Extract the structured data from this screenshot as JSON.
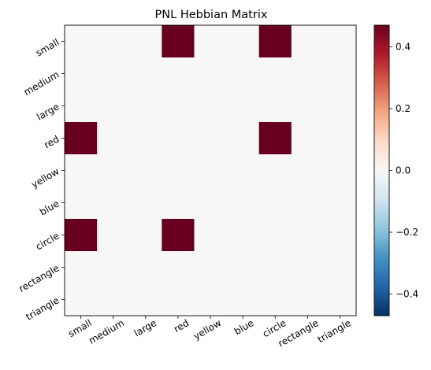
{
  "chart_data": {
    "type": "heatmap",
    "title": "PNL Hebbian Matrix",
    "x_labels": [
      "small",
      "medium",
      "large",
      "red",
      "yellow",
      "blue",
      "circle",
      "rectangle",
      "triangle"
    ],
    "y_labels": [
      "small",
      "medium",
      "large",
      "red",
      "yellow",
      "blue",
      "circle",
      "rectangle",
      "triangle"
    ],
    "values": [
      [
        0,
        0,
        0,
        0.47,
        0,
        0,
        0.47,
        0,
        0
      ],
      [
        0,
        0,
        0,
        0,
        0,
        0,
        0,
        0,
        0
      ],
      [
        0,
        0,
        0,
        0,
        0,
        0,
        0,
        0,
        0
      ],
      [
        0.47,
        0,
        0,
        0,
        0,
        0,
        0.47,
        0,
        0
      ],
      [
        0,
        0,
        0,
        0,
        0,
        0,
        0,
        0,
        0
      ],
      [
        0,
        0,
        0,
        0,
        0,
        0,
        0,
        0,
        0
      ],
      [
        0.47,
        0,
        0,
        0.47,
        0,
        0,
        0,
        0,
        0
      ],
      [
        0,
        0,
        0,
        0,
        0,
        0,
        0,
        0,
        0
      ],
      [
        0,
        0,
        0,
        0,
        0,
        0,
        0,
        0,
        0
      ]
    ],
    "colormap": "RdBu_r",
    "vmin": -0.47,
    "vmax": 0.47,
    "colorbar_ticks": [
      0.4,
      0.2,
      0.0,
      -0.2,
      -0.4
    ],
    "colorbar_tick_labels": [
      "0.4",
      "0.2",
      "0.0",
      "−0.2",
      "−0.4"
    ]
  }
}
